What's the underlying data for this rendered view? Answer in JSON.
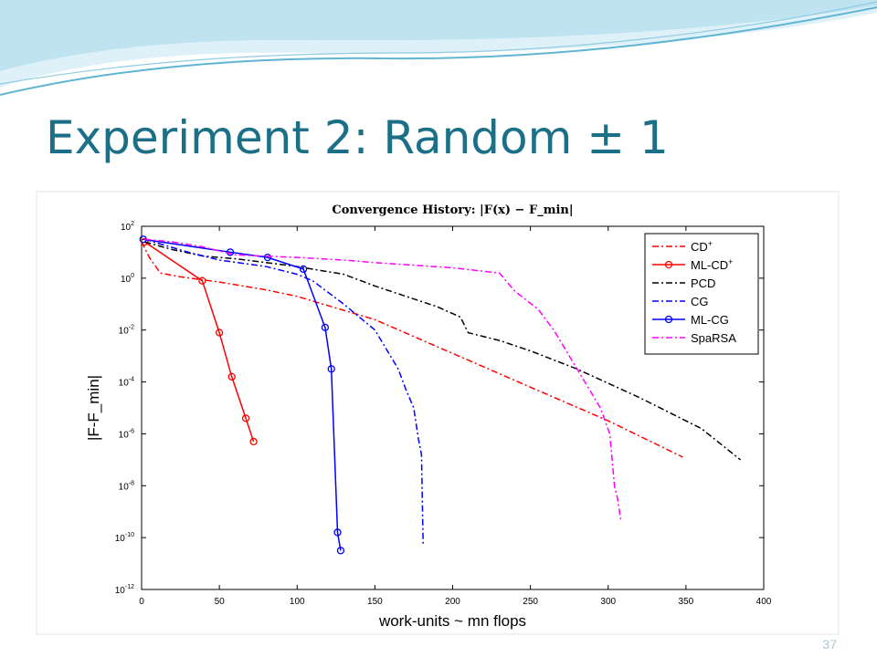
{
  "slide": {
    "title": "Experiment 2: Random ± 1",
    "number": "37"
  },
  "colors": {
    "title": "#1b6f86",
    "wave_light": "#bfe3f0",
    "wave_dark": "#5fb5d3"
  },
  "chart_data": {
    "type": "line",
    "title": "Convergence History: |F(x) − F_min|",
    "xlabel": "work-units ~ mn flops",
    "ylabel": "|F-F_min|",
    "xlim": [
      0,
      400
    ],
    "xticks": [
      0,
      50,
      100,
      150,
      200,
      250,
      300,
      350,
      400
    ],
    "ylim_log10": [
      -12,
      2
    ],
    "yticks_log10": [
      2,
      0,
      -2,
      -4,
      -6,
      -8,
      -10,
      -12
    ],
    "y_scale": "log",
    "grid": false,
    "legend_position": "top-right",
    "series": [
      {
        "name": "CD+",
        "color": "#ff0000",
        "dash": "dashdot",
        "marker": "none",
        "points": [
          [
            0,
            1.4
          ],
          [
            5,
            0.8
          ],
          [
            12,
            0.2
          ],
          [
            25,
            0.05
          ],
          [
            50,
            -0.15
          ],
          [
            80,
            -0.45
          ],
          [
            100,
            -0.7
          ],
          [
            150,
            -1.6
          ],
          [
            200,
            -2.9
          ],
          [
            250,
            -4.2
          ],
          [
            300,
            -5.5
          ],
          [
            348,
            -6.9
          ]
        ]
      },
      {
        "name": "ML-CD+",
        "color": "#ff0000",
        "dash": "solid",
        "marker": "circle",
        "points": [
          [
            2,
            1.4
          ],
          [
            39,
            -0.1
          ],
          [
            50,
            -2.1
          ],
          [
            58,
            -3.8
          ],
          [
            67,
            -5.4
          ],
          [
            72,
            -6.3
          ]
        ]
      },
      {
        "name": "PCD",
        "color": "#000000",
        "dash": "dashdot",
        "marker": "none",
        "points": [
          [
            2,
            1.4
          ],
          [
            20,
            1.1
          ],
          [
            40,
            0.85
          ],
          [
            60,
            0.75
          ],
          [
            80,
            0.6
          ],
          [
            100,
            0.45
          ],
          [
            120,
            0.25
          ],
          [
            130,
            0.15
          ],
          [
            150,
            -0.3
          ],
          [
            160,
            -0.5
          ],
          [
            180,
            -0.9
          ],
          [
            190,
            -1.1
          ],
          [
            205,
            -1.5
          ],
          [
            210,
            -2.1
          ],
          [
            230,
            -2.4
          ],
          [
            250,
            -2.8
          ],
          [
            280,
            -3.5
          ],
          [
            320,
            -4.6
          ],
          [
            360,
            -5.8
          ],
          [
            385,
            -7.0
          ]
        ]
      },
      {
        "name": "CG",
        "color": "#0000ff",
        "dash": "dashdot",
        "marker": "none",
        "points": [
          [
            2,
            1.5
          ],
          [
            30,
            1.0
          ],
          [
            50,
            0.7
          ],
          [
            80,
            0.45
          ],
          [
            100,
            0.15
          ],
          [
            110,
            -0.1
          ],
          [
            130,
            -1.0
          ],
          [
            150,
            -2.0
          ],
          [
            160,
            -3.0
          ],
          [
            165,
            -3.5
          ],
          [
            170,
            -4.3
          ],
          [
            175,
            -5.0
          ],
          [
            178,
            -6.2
          ],
          [
            180,
            -6.8
          ],
          [
            181,
            -10.3
          ]
        ]
      },
      {
        "name": "ML-CG",
        "color": "#0000ff",
        "dash": "solid",
        "marker": "circle",
        "points": [
          [
            1,
            1.5
          ],
          [
            57,
            1.0
          ],
          [
            81,
            0.8
          ],
          [
            104,
            0.35
          ],
          [
            118,
            -1.9
          ],
          [
            122,
            -3.5
          ],
          [
            126,
            -9.8
          ],
          [
            128,
            -10.5
          ]
        ]
      },
      {
        "name": "SpaRSA",
        "color": "#ff00ff",
        "dash": "dashdot",
        "marker": "none",
        "points": [
          [
            2,
            1.5
          ],
          [
            20,
            1.4
          ],
          [
            40,
            1.2
          ],
          [
            60,
            0.9
          ],
          [
            100,
            0.8
          ],
          [
            130,
            0.7
          ],
          [
            150,
            0.6
          ],
          [
            200,
            0.4
          ],
          [
            230,
            0.2
          ],
          [
            240,
            -0.5
          ],
          [
            255,
            -1.2
          ],
          [
            265,
            -2.0
          ],
          [
            275,
            -3.0
          ],
          [
            285,
            -4.0
          ],
          [
            295,
            -5.0
          ],
          [
            301,
            -6.0
          ],
          [
            304,
            -8.0
          ],
          [
            306,
            -8.5
          ],
          [
            308,
            -9.3
          ]
        ]
      }
    ]
  }
}
